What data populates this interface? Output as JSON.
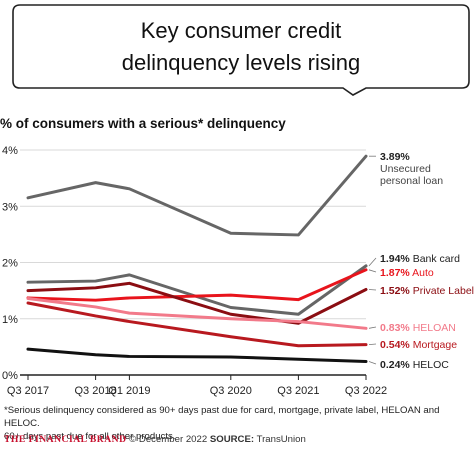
{
  "headline": {
    "line1": "Key consumer credit",
    "line2": "delinquency levels rising"
  },
  "chart_data": {
    "type": "line",
    "title": "% of consumers with a serious* delinquency",
    "xlabel": "",
    "ylabel": "",
    "ylim": [
      0,
      4
    ],
    "yticks": [
      "0%",
      "1%",
      "2%",
      "3%",
      "4%"
    ],
    "x": [
      "Q3 2017",
      "Q3 2018",
      "Q1 2019",
      "Q3 2020",
      "Q3 2021",
      "Q3 2022"
    ],
    "x_positions": [
      0,
      1,
      1.5,
      3,
      4,
      5
    ],
    "grid": true,
    "series": [
      {
        "name": "Unsecured personal loan",
        "value_label": "3.89%",
        "label_line2": "Unsecured",
        "label_line3": "personal loan",
        "color": "#666666",
        "values": [
          3.15,
          3.42,
          3.31,
          2.52,
          2.49,
          3.89
        ]
      },
      {
        "name": "Bank card",
        "value_label": "1.94%",
        "color": "#666666",
        "values": [
          1.65,
          1.67,
          1.78,
          1.2,
          1.08,
          1.94
        ]
      },
      {
        "name": "Auto",
        "value_label": "1.87%",
        "color": "#e8141c",
        "values": [
          1.37,
          1.33,
          1.37,
          1.42,
          1.34,
          1.87
        ]
      },
      {
        "name": "Private Label",
        "value_label": "1.52%",
        "color": "#8b0d12",
        "values": [
          1.5,
          1.55,
          1.63,
          1.08,
          0.92,
          1.52
        ]
      },
      {
        "name": "HELOAN",
        "value_label": "0.83%",
        "color": "#f27a8a",
        "values": [
          1.36,
          1.21,
          1.1,
          1.0,
          0.95,
          0.83
        ]
      },
      {
        "name": "Mortgage",
        "value_label": "0.54%",
        "color": "#b8191f",
        "values": [
          1.28,
          1.05,
          0.95,
          0.68,
          0.52,
          0.54
        ]
      },
      {
        "name": "HELOC",
        "value_label": "0.24%",
        "color": "#111111",
        "values": [
          0.46,
          0.36,
          0.33,
          0.32,
          0.28,
          0.24
        ]
      }
    ]
  },
  "footnote": {
    "line1": "*Serious delinquency considered as 90+ days past due for card, mortgage, private label, HELOAN and HELOC.",
    "line2": "60+ days past due for all other products."
  },
  "credit": {
    "brand": "THE FINANCIAL BRAND",
    "date_text": " © December 2022 ",
    "source_label": "SOURCE:",
    "source_text": " TransUnion"
  }
}
